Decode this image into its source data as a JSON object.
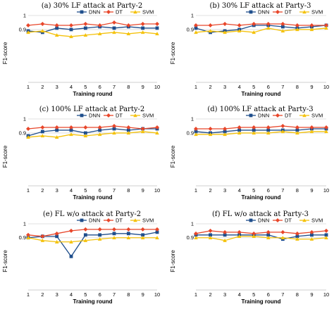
{
  "colors": {
    "DNN": "#1f4e8c",
    "DT": "#e8462a",
    "SVM": "#f4c20d",
    "grid": "#d9d9d9"
  },
  "chart_data": [
    {
      "type": "line",
      "title": "(a) 30% LF attack at Party-2",
      "xlabel": "Training round",
      "ylabel": "F1-score",
      "x": [
        1,
        2,
        3,
        4,
        5,
        6,
        7,
        8,
        9,
        10
      ],
      "ylim": [
        0,
        1
      ],
      "yticks": [
        "0",
        "0.1",
        "0.2",
        "0.3",
        "0.4",
        "0.5",
        "0.6",
        "0.7",
        "0.8",
        "0.9",
        "1"
      ],
      "legend_position": "top-right",
      "series": [
        {
          "name": "DNN",
          "marker": "square",
          "values": [
            0.89,
            0.88,
            0.91,
            0.9,
            0.91,
            0.92,
            0.91,
            0.92,
            0.91,
            0.91
          ]
        },
        {
          "name": "DT",
          "marker": "diamond",
          "values": [
            0.93,
            0.94,
            0.93,
            0.93,
            0.94,
            0.93,
            0.95,
            0.93,
            0.94,
            0.94
          ]
        },
        {
          "name": "SVM",
          "marker": "triangle",
          "values": [
            0.88,
            0.89,
            0.86,
            0.85,
            0.86,
            0.87,
            0.88,
            0.87,
            0.88,
            0.87
          ]
        }
      ]
    },
    {
      "type": "line",
      "title": "(b) 30% LF attack at Party-3",
      "xlabel": "Training round",
      "ylabel": "F1-score",
      "x": [
        1,
        2,
        3,
        4,
        5,
        6,
        7,
        8,
        9,
        10
      ],
      "ylim": [
        0,
        1
      ],
      "yticks": [
        "0",
        "0.1",
        "0.2",
        "0.3",
        "0.4",
        "0.5",
        "0.6",
        "0.7",
        "0.8",
        "0.9",
        "1"
      ],
      "legend_position": "top-right",
      "series": [
        {
          "name": "DNN",
          "marker": "square",
          "values": [
            0.91,
            0.88,
            0.89,
            0.9,
            0.93,
            0.93,
            0.92,
            0.91,
            0.92,
            0.93
          ]
        },
        {
          "name": "DT",
          "marker": "diamond",
          "values": [
            0.93,
            0.93,
            0.94,
            0.93,
            0.94,
            0.94,
            0.94,
            0.93,
            0.93,
            0.93
          ]
        },
        {
          "name": "SVM",
          "marker": "triangle",
          "values": [
            0.88,
            0.89,
            0.88,
            0.89,
            0.88,
            0.91,
            0.89,
            0.9,
            0.9,
            0.91
          ]
        }
      ]
    },
    {
      "type": "line",
      "title": "(c) 100% LF attack at Party-2",
      "xlabel": "Training round",
      "ylabel": "F1-score",
      "x": [
        1,
        2,
        3,
        4,
        5,
        6,
        7,
        8,
        9,
        10
      ],
      "ylim": [
        0,
        1
      ],
      "yticks": [
        "0",
        "0.1",
        "0.2",
        "0.3",
        "0.4",
        "0.5",
        "0.6",
        "0.7",
        "0.8",
        "0.9",
        "1"
      ],
      "legend_position": "top-right",
      "series": [
        {
          "name": "DNN",
          "marker": "square",
          "values": [
            0.88,
            0.91,
            0.92,
            0.92,
            0.9,
            0.92,
            0.93,
            0.92,
            0.93,
            0.93
          ]
        },
        {
          "name": "DT",
          "marker": "diamond",
          "values": [
            0.93,
            0.94,
            0.94,
            0.94,
            0.94,
            0.94,
            0.95,
            0.94,
            0.93,
            0.94
          ]
        },
        {
          "name": "SVM",
          "marker": "triangle",
          "values": [
            0.87,
            0.88,
            0.87,
            0.89,
            0.88,
            0.89,
            0.9,
            0.9,
            0.91,
            0.9
          ]
        }
      ]
    },
    {
      "type": "line",
      "title": "(d) 100% LF attack at Party-3",
      "xlabel": "Training round",
      "ylabel": "F1-score",
      "x": [
        1,
        2,
        3,
        4,
        5,
        6,
        7,
        8,
        9,
        10
      ],
      "ylim": [
        0,
        1
      ],
      "yticks": [
        "0",
        "0.1",
        "0.2",
        "0.3",
        "0.4",
        "0.5",
        "0.6",
        "0.7",
        "0.8",
        "0.9",
        "1"
      ],
      "legend_position": "top-right",
      "series": [
        {
          "name": "DNN",
          "marker": "square",
          "values": [
            0.91,
            0.9,
            0.91,
            0.92,
            0.92,
            0.92,
            0.92,
            0.92,
            0.93,
            0.93
          ]
        },
        {
          "name": "DT",
          "marker": "diamond",
          "values": [
            0.93,
            0.93,
            0.93,
            0.94,
            0.94,
            0.94,
            0.95,
            0.94,
            0.94,
            0.94
          ]
        },
        {
          "name": "SVM",
          "marker": "triangle",
          "values": [
            0.89,
            0.89,
            0.89,
            0.9,
            0.9,
            0.9,
            0.91,
            0.9,
            0.91,
            0.91
          ]
        }
      ]
    },
    {
      "type": "line",
      "title": "(e) FL w/o attack at Party-2",
      "xlabel": "Training round",
      "ylabel": "F1-score",
      "x": [
        1,
        2,
        3,
        4,
        5,
        6,
        7,
        8,
        9,
        10
      ],
      "ylim": [
        0,
        1
      ],
      "yticks": [
        "0",
        "0.1",
        "0.2",
        "0.3",
        "0.4",
        "0.5",
        "0.6",
        "0.7",
        "0.8",
        "0.9",
        "1"
      ],
      "legend_position": "top-right",
      "series": [
        {
          "name": "DNN",
          "marker": "square",
          "values": [
            0.9,
            0.91,
            0.91,
            0.7,
            0.92,
            0.92,
            0.93,
            0.93,
            0.92,
            0.94
          ]
        },
        {
          "name": "DT",
          "marker": "diamond",
          "values": [
            0.92,
            0.91,
            0.93,
            0.95,
            0.96,
            0.96,
            0.96,
            0.96,
            0.96,
            0.96
          ]
        },
        {
          "name": "SVM",
          "marker": "triangle",
          "values": [
            0.9,
            0.88,
            0.87,
            0.87,
            0.88,
            0.89,
            0.9,
            0.9,
            0.9,
            0.9
          ]
        }
      ]
    },
    {
      "type": "line",
      "title": "(f) FL w/o attack at Party-3",
      "xlabel": "Training round",
      "ylabel": "F1-score",
      "x": [
        1,
        2,
        3,
        4,
        5,
        6,
        7,
        8,
        9,
        10
      ],
      "ylim": [
        0,
        1
      ],
      "yticks": [
        "0",
        "0.1",
        "0.2",
        "0.3",
        "0.4",
        "0.5",
        "0.6",
        "0.7",
        "0.8",
        "0.9",
        "1"
      ],
      "legend_position": "top-right",
      "series": [
        {
          "name": "DNN",
          "marker": "square",
          "values": [
            0.92,
            0.92,
            0.92,
            0.92,
            0.92,
            0.92,
            0.89,
            0.91,
            0.92,
            0.92
          ]
        },
        {
          "name": "DT",
          "marker": "diamond",
          "values": [
            0.93,
            0.95,
            0.94,
            0.94,
            0.93,
            0.94,
            0.94,
            0.93,
            0.94,
            0.95
          ]
        },
        {
          "name": "SVM",
          "marker": "triangle",
          "values": [
            0.9,
            0.9,
            0.88,
            0.91,
            0.91,
            0.9,
            0.9,
            0.89,
            0.89,
            0.9
          ]
        }
      ]
    }
  ]
}
